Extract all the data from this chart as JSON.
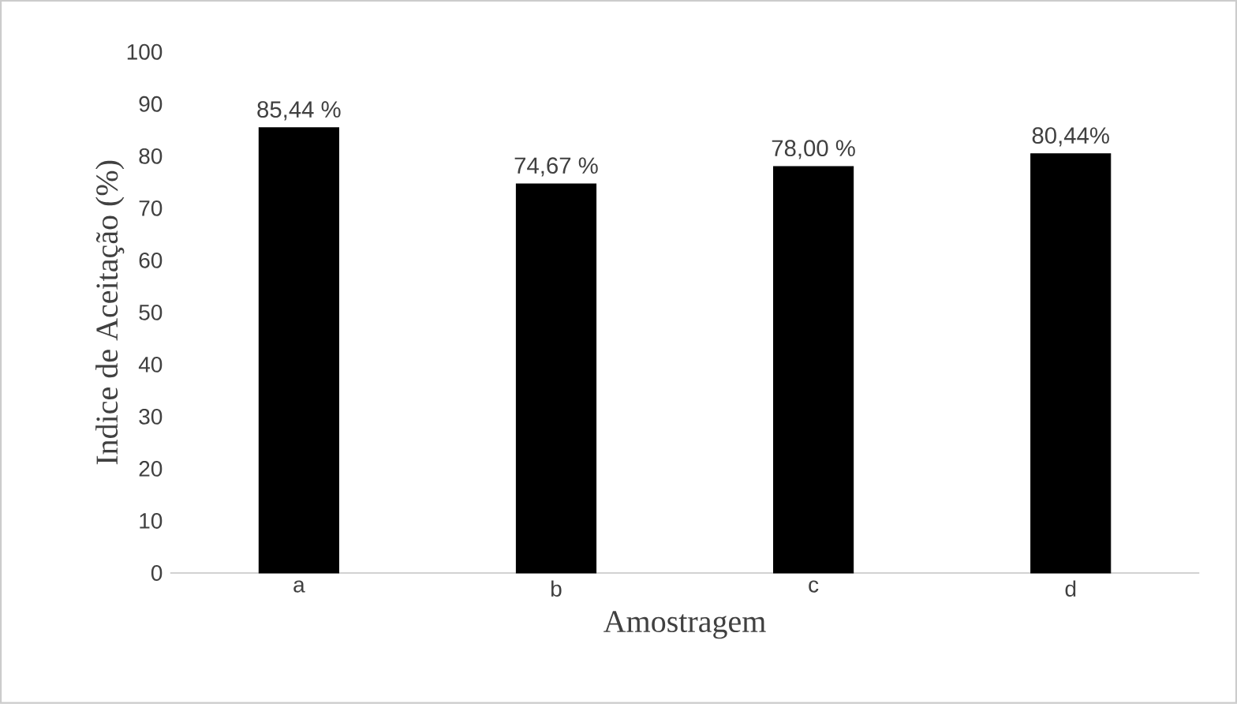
{
  "chart_data": {
    "type": "bar",
    "xlabel": "Amostragem",
    "ylabel": "Indice de Aceitação (%)",
    "categories": [
      "a",
      "b",
      "c",
      "d"
    ],
    "values": [
      85.44,
      74.67,
      78.0,
      80.44
    ],
    "value_labels": [
      "85,44 %",
      "74,67 %",
      "78,00 %",
      "80,44%"
    ],
    "color": "#000000",
    "ylim": [
      0,
      100
    ],
    "yticks": [
      0,
      10,
      20,
      30,
      40,
      50,
      60,
      70,
      80,
      90,
      100
    ],
    "grid": false
  }
}
